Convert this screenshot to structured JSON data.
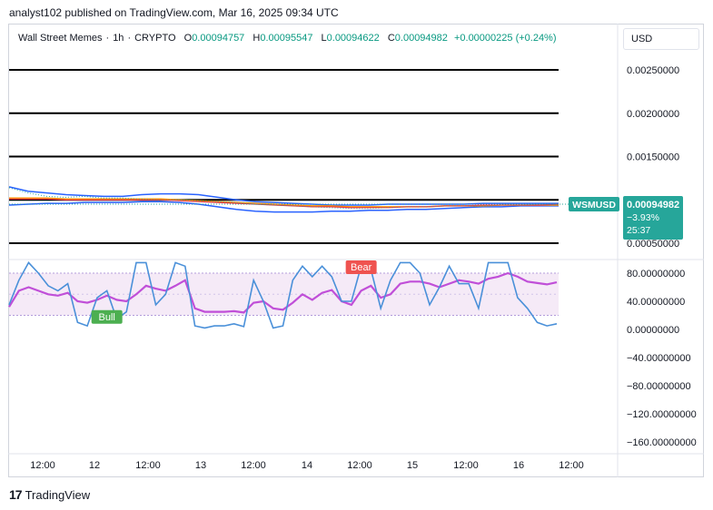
{
  "header": {
    "publish_line": "analyst102 published on TradingView.com, Mar 16, 2025 09:34 UTC"
  },
  "legend": {
    "symbol": "Wall Street Memes",
    "interval": "1h",
    "exchange": "CRYPTO",
    "open_label": "O",
    "open": "0.00094757",
    "high_label": "H",
    "high": "0.00095547",
    "low_label": "L",
    "low": "0.00094622",
    "close_label": "C",
    "close": "0.00094982",
    "change": "+0.00000225 (+0.24%)"
  },
  "currency_button": "USD",
  "price_tag": {
    "symbol": "WSMUSD",
    "price": "0.00094982",
    "change": "−3.93%",
    "countdown": "25:37"
  },
  "signals": {
    "bull": "Bull",
    "bear": "Bear"
  },
  "colors": {
    "price_line": "#4e7be0",
    "bb": "#2962ff",
    "ma_fast": "#f23645",
    "ma_slow": "#ff9800",
    "stoch_k": "#4a90d9",
    "stoch_d": "#c04fd8",
    "band_fill": "#f3e5f5",
    "bull": "#4caf50",
    "bear": "#ef5350",
    "tag": "#26a69a"
  },
  "chart_data": {
    "type": "line",
    "x_ticks": [
      "12:00",
      "12",
      "12:00",
      "13",
      "12:00",
      "14",
      "12:00",
      "15",
      "12:00",
      "16",
      "12:00"
    ],
    "price_axis": {
      "ticks": [
        "0.00250000",
        "0.00200000",
        "0.00150000",
        "0.00100000",
        "0.00050000"
      ],
      "tick_values": [
        0.0025,
        0.002,
        0.0015,
        0.001,
        0.0005
      ],
      "ylim": [
        0.0005,
        0.0025
      ]
    },
    "horizontal_levels": [
      0.0025,
      0.002,
      0.0015,
      0.001,
      0.0005
    ],
    "price_series": [
      0.00114,
      0.00108,
      0.00104,
      0.00103,
      0.00104,
      0.00102,
      0.00102,
      0.00101,
      0.001,
      0.001,
      0.00099,
      0.00098,
      0.00097,
      0.00095,
      0.00094,
      0.00093,
      0.00092,
      0.00091,
      0.0009,
      0.0009,
      0.00091,
      0.00092,
      0.00092,
      0.00093,
      0.00093,
      0.00093,
      0.00094,
      0.00094,
      0.00095,
      0.00095
    ],
    "bb_upper": [
      0.00115,
      0.0011,
      0.00108,
      0.00106,
      0.00105,
      0.00104,
      0.00104,
      0.00106,
      0.00107,
      0.00107,
      0.00106,
      0.00103,
      0.001,
      0.00098,
      0.00097,
      0.00096,
      0.00095,
      0.00094,
      0.00094,
      0.00094,
      0.00095,
      0.00095,
      0.00095,
      0.00095,
      0.00095,
      0.00096,
      0.00096,
      0.00096,
      0.00096,
      0.00096
    ],
    "bb_lower": [
      0.00094,
      0.00095,
      0.00096,
      0.00096,
      0.00097,
      0.00097,
      0.00097,
      0.00098,
      0.00098,
      0.00097,
      0.00095,
      0.00092,
      0.00089,
      0.00087,
      0.00086,
      0.00086,
      0.00086,
      0.00087,
      0.00087,
      0.00088,
      0.00088,
      0.00089,
      0.00089,
      0.0009,
      0.00091,
      0.00092,
      0.00092,
      0.00093,
      0.00093,
      0.00093
    ],
    "ma_fast": [
      0.00101,
      0.00101,
      0.00101,
      0.001,
      0.001,
      0.001,
      0.001,
      0.001,
      0.001,
      0.00099,
      0.00098,
      0.00097,
      0.00096,
      0.00095,
      0.00094,
      0.00093,
      0.00092,
      0.00092,
      0.00091,
      0.00091,
      0.00091,
      0.00092,
      0.00092,
      0.00093,
      0.00093,
      0.00094,
      0.00094,
      0.00094,
      0.00094,
      0.00095
    ],
    "ma_slow": [
      0.00102,
      0.00102,
      0.00102,
      0.00101,
      0.00101,
      0.00101,
      0.00101,
      0.00101,
      0.00101,
      0.001,
      0.00099,
      0.00098,
      0.00097,
      0.00096,
      0.00095,
      0.00094,
      0.00093,
      0.00093,
      0.00092,
      0.00092,
      0.00092,
      0.00092,
      0.00092,
      0.00093,
      0.00093,
      0.00093,
      0.00094,
      0.00094,
      0.00094,
      0.00094
    ],
    "oscillator_axis": {
      "ticks": [
        "80.00000000",
        "40.00000000",
        "0.00000000",
        "−40.00000000",
        "−80.00000000",
        "−120.00000000",
        "−160.00000000"
      ],
      "tick_values": [
        80,
        40,
        0,
        -40,
        -80,
        -120,
        -160
      ],
      "ylim": [
        -175,
        100
      ],
      "band": [
        20,
        80
      ]
    },
    "stoch_k": [
      35,
      70,
      95,
      80,
      62,
      55,
      65,
      10,
      5,
      45,
      55,
      15,
      25,
      95,
      95,
      35,
      50,
      95,
      90,
      5,
      2,
      5,
      5,
      8,
      4,
      70,
      40,
      2,
      5,
      70,
      90,
      75,
      90,
      75,
      40,
      40,
      90,
      85,
      30,
      70,
      95,
      95,
      80,
      35,
      60,
      90,
      65,
      65,
      30,
      95,
      95,
      95,
      45,
      30,
      10,
      5,
      8
    ],
    "stoch_d": [
      32,
      55,
      60,
      55,
      50,
      48,
      52,
      40,
      38,
      42,
      48,
      42,
      40,
      50,
      62,
      58,
      55,
      62,
      70,
      30,
      25,
      25,
      25,
      26,
      24,
      38,
      40,
      30,
      28,
      38,
      50,
      42,
      52,
      56,
      40,
      35,
      55,
      62,
      45,
      50,
      65,
      68,
      68,
      65,
      60,
      65,
      70,
      68,
      65,
      72,
      75,
      80,
      75,
      68,
      66,
      64,
      67
    ],
    "signals": [
      {
        "label": "Bull",
        "x_index": 10,
        "value": 30
      },
      {
        "label": "Bear",
        "x_index": 36,
        "value": 80
      }
    ]
  }
}
